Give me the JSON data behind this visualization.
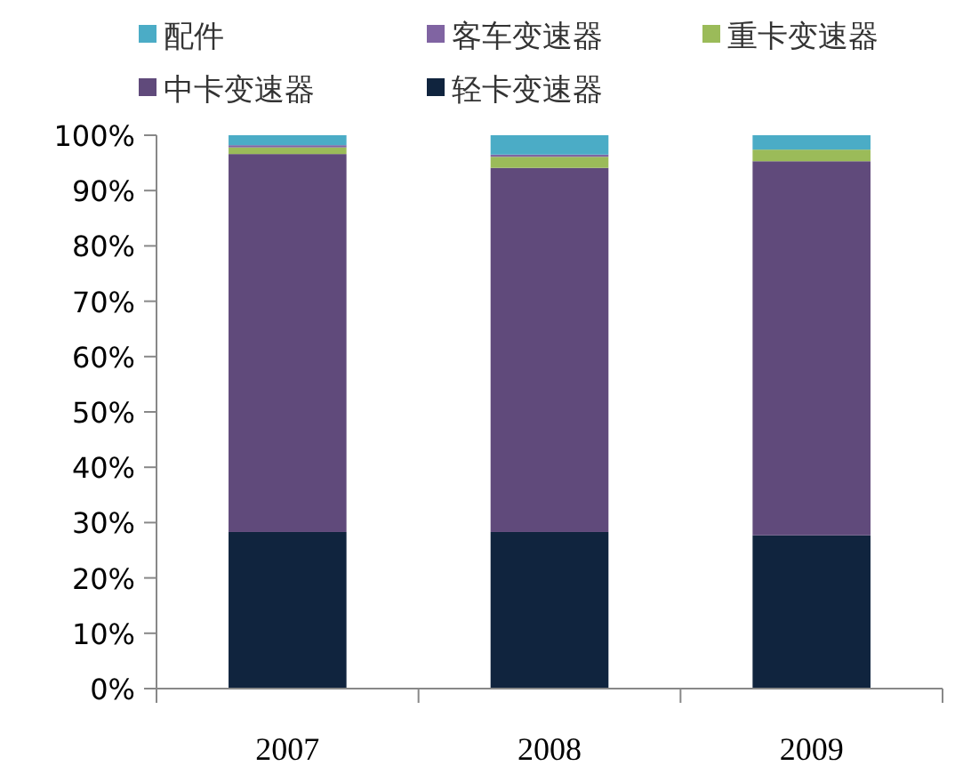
{
  "chart_data": {
    "type": "bar",
    "stacked": true,
    "categories": [
      "2007",
      "2008",
      "2009"
    ],
    "series": [
      {
        "name": "轻卡变速器",
        "color": "#10243e",
        "values": [
          28.3,
          28.3,
          27.7
        ]
      },
      {
        "name": "中卡变速器",
        "color": "#604a7b",
        "values": [
          68.3,
          65.8,
          67.6
        ]
      },
      {
        "name": "重卡变速器",
        "color": "#9bbb59",
        "values": [
          1.2,
          2.0,
          2.1
        ]
      },
      {
        "name": "客车变速器",
        "color": "#8064a2",
        "values": [
          0.4,
          0.4,
          0
        ]
      },
      {
        "name": "配件",
        "color": "#4bacc6",
        "values": [
          1.8,
          3.5,
          2.6
        ]
      }
    ],
    "ylim": [
      0,
      100
    ],
    "yticks": [
      {
        "value": 0,
        "label": "0%"
      },
      {
        "value": 10,
        "label": "10%"
      },
      {
        "value": 20,
        "label": "20%"
      },
      {
        "value": 30,
        "label": "30%"
      },
      {
        "value": 40,
        "label": "40%"
      },
      {
        "value": 50,
        "label": "50%"
      },
      {
        "value": 60,
        "label": "60%"
      },
      {
        "value": 70,
        "label": "70%"
      },
      {
        "value": 80,
        "label": "80%"
      },
      {
        "value": 90,
        "label": "90%"
      },
      {
        "value": 100,
        "label": "100%"
      }
    ],
    "grid": false,
    "legend": "top"
  }
}
